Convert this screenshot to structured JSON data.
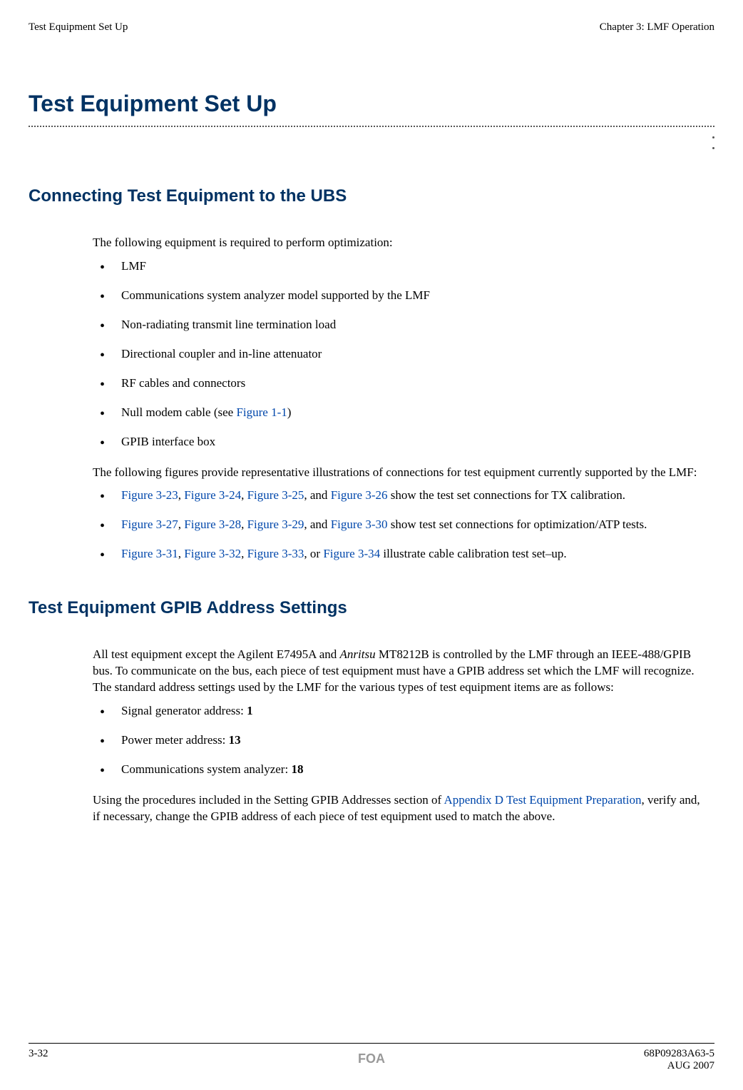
{
  "header": {
    "left": "Test Equipment Set Up",
    "right": "Chapter 3: LMF Operation"
  },
  "main_title": "Test Equipment Set Up",
  "colors": {
    "heading": "#003263",
    "link": "#0047ab",
    "footer_center": "#999999",
    "text": "#000000",
    "background": "#ffffff"
  },
  "section1": {
    "title": "Connecting Test Equipment to the UBS",
    "intro": "The following equipment is required to perform optimization:",
    "bullets": [
      "LMF",
      "Communications system analyzer model supported by the LMF",
      "Non-radiating transmit line termination load",
      "Directional coupler and in-line attenuator",
      "RF cables and connectors"
    ],
    "bullet6_pre": "Null modem cable (see ",
    "bullet6_link": "Figure 1-1",
    "bullet6_post": ")",
    "bullet7": "GPIB interface box",
    "para2": "The following figures provide representative illustrations of connections for test equipment currently supported by the LMF:",
    "fig_bullets": {
      "b1": {
        "l1": "Figure 3-23",
        "c1": ", ",
        "l2": "Figure 3-24",
        "c2": ", ",
        "l3": "Figure 3-25",
        "c3": ", and ",
        "l4": "Figure 3-26",
        "tail": " show the test set connections for TX calibration."
      },
      "b2": {
        "l1": "Figure 3-27",
        "c1": ", ",
        "l2": "Figure 3-28",
        "c2": ", ",
        "l3": "Figure 3-29",
        "c3": ", and ",
        "l4": "Figure 3-30",
        "tail": " show test set connections for optimization/ATP tests."
      },
      "b3": {
        "l1": "Figure 3-31",
        "c1": ", ",
        "l2": "Figure 3-32",
        "c2": ", ",
        "l3": "Figure 3-33",
        "c3": ", or ",
        "l4": "Figure 3-34",
        "tail": " illustrate cable calibration test set–up."
      }
    }
  },
  "section2": {
    "title": "Test Equipment GPIB Address Settings",
    "para1_pre": "All test equipment except the Agilent E7495A and ",
    "para1_italic": "Anritsu",
    "para1_post": " MT8212B is controlled by the LMF through an IEEE-488/GPIB bus. To communicate on the bus, each piece of test equipment must have a GPIB address set which the LMF will recognize. The standard address settings used by the LMF for the various types of test equipment items are as follows:",
    "bullets": {
      "b1_text": "Signal generator address:  ",
      "b1_val": "1",
      "b2_text": "Power meter address:  ",
      "b2_val": "13",
      "b3_text": "Communications system analyzer:  ",
      "b3_val": "18"
    },
    "para2_pre": "Using the procedures included in the Setting GPIB Addresses section of ",
    "para2_link": "Appendix D Test Equipment Preparation",
    "para2_post": ", verify and, if necessary, change the GPIB address of each piece of test equipment used to match the above."
  },
  "footer": {
    "left": "3-32",
    "center": "FOA",
    "right_top": "68P09283A63-5",
    "right_bottom": "AUG 2007"
  }
}
